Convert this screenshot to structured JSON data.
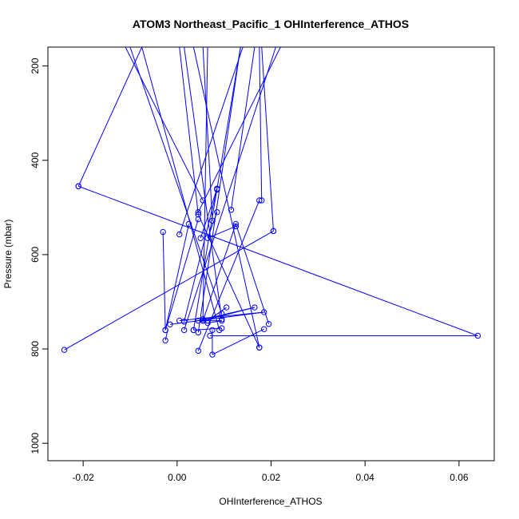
{
  "chart_data": {
    "type": "line",
    "title": "ATOM3 Northeast_Pacific_1 OHInterference_ATHOS",
    "xlabel": "OHInterference_ATHOS",
    "ylabel": "Pressure (mbar)",
    "xlim": [
      -0.0275,
      0.0675
    ],
    "ylim": [
      1037,
      160
    ],
    "y_inverted": true,
    "x_ticks": [
      -0.02,
      0.0,
      0.02,
      0.04,
      0.06
    ],
    "x_tick_labels": [
      "-0.02",
      "0.00",
      "0.02",
      "0.04",
      "0.06"
    ],
    "y_ticks": [
      200,
      400,
      600,
      800,
      1000
    ],
    "y_tick_labels": [
      "200",
      "400",
      "600",
      "800",
      "1000"
    ],
    "grid": false,
    "legend": "none",
    "series": [
      {
        "color": "#0000ff",
        "marker": "open-circle",
        "segments": [
          {
            "points": [
              [
                -0.011,
                160
              ],
              [
                0.0055,
                485
              ]
            ],
            "marker_end": true
          },
          {
            "points": [
              [
                -0.01,
                160
              ],
              [
                0.0095,
                725
              ]
            ],
            "marker_end": true
          },
          {
            "points": [
              [
                -0.0075,
                160
              ],
              [
                0.009,
                760
              ]
            ],
            "marker_end": true
          },
          {
            "points": [
              [
                -0.0075,
                160
              ],
              [
                -0.021,
                455
              ]
            ],
            "marker_end": true
          },
          {
            "points": [
              [
                -0.021,
                455
              ],
              [
                0.064,
                772
              ]
            ],
            "marker_start": true,
            "marker_end": true
          },
          {
            "points": [
              [
                0.064,
                772
              ],
              [
                0.007,
                772
              ]
            ],
            "marker_end": true
          },
          {
            "points": [
              [
                0.0005,
                160
              ],
              [
                0.0045,
                515
              ]
            ],
            "marker_end": true
          },
          {
            "points": [
              [
                0.0045,
                515
              ],
              [
                0.0175,
                797
              ]
            ],
            "marker_start": true,
            "marker_end": true
          },
          {
            "points": [
              [
                0.0015,
                160
              ],
              [
                0.0095,
                737
              ]
            ],
            "marker_end": true
          },
          {
            "points": [
              [
                0.0035,
                160
              ],
              [
                0.0175,
                797
              ]
            ],
            "marker_end": true
          },
          {
            "points": [
              [
                0.0055,
                160
              ],
              [
                0.0075,
                528
              ]
            ],
            "marker_end": true
          },
          {
            "points": [
              [
                0.014,
                160
              ],
              [
                0.0005,
                557
              ]
            ],
            "marker_end": true
          },
          {
            "points": [
              [
                0.0065,
                160
              ],
              [
                0.0055,
                737
              ]
            ],
            "marker_end": true
          },
          {
            "points": [
              [
                0.0135,
                160
              ],
              [
                0.0045,
                765
              ]
            ],
            "marker_end": true
          },
          {
            "points": [
              [
                0.0135,
                160
              ],
              [
                0.0035,
                760
              ]
            ],
            "marker_end": true
          },
          {
            "points": [
              [
                0.0165,
                160
              ],
              [
                0.0115,
                505
              ]
            ],
            "marker_end": true
          },
          {
            "points": [
              [
                0.0175,
                160
              ],
              [
                0.018,
                485
              ]
            ],
            "marker_end": true
          },
          {
            "points": [
              [
                0.018,
                160
              ],
              [
                0.0205,
                550
              ]
            ],
            "marker_end": true
          },
          {
            "points": [
              [
                0.022,
                160
              ],
              [
                0.0045,
                510
              ]
            ],
            "marker_end": true
          },
          {
            "points": [
              [
                0.021,
                160
              ],
              [
                0.0015,
                760
              ]
            ],
            "marker_end": true
          },
          {
            "points": [
              [
                0.0125,
                540
              ],
              [
                0.0065,
                565
              ]
            ],
            "marker_start": true,
            "marker_end": true
          },
          {
            "points": [
              [
                0.0065,
                565
              ],
              [
                0.0085,
                510
              ]
            ],
            "marker_end": true
          },
          {
            "points": [
              [
                0.0025,
                535
              ],
              [
                -0.0025,
                760
              ]
            ],
            "marker_start": true,
            "marker_end": true
          },
          {
            "points": [
              [
                -0.0025,
                760
              ],
              [
                -0.003,
                552
              ]
            ],
            "marker_end": true
          },
          {
            "points": [
              [
                0.005,
                565
              ],
              [
                0.0085,
                460
              ]
            ],
            "marker_start": true,
            "marker_end": true
          },
          {
            "points": [
              [
                0.0045,
                525
              ],
              [
                -0.0025,
                760
              ]
            ],
            "marker_start": true,
            "marker_end": true
          },
          {
            "points": [
              [
                -0.002,
                760
              ],
              [
                -0.0025,
                782
              ]
            ],
            "marker_end": true
          },
          {
            "points": [
              [
                0.0205,
                550
              ],
              [
                -0.024,
                802
              ]
            ],
            "marker_start": true,
            "marker_end": true
          },
          {
            "points": [
              [
                -0.0015,
                748
              ],
              [
                0.0185,
                722
              ]
            ],
            "marker_start": true,
            "marker_end": true
          },
          {
            "points": [
              [
                0.0185,
                722
              ],
              [
                0.0005,
                740
              ]
            ],
            "marker_end": true
          },
          {
            "points": [
              [
                0.0085,
                462
              ],
              [
                0.0015,
                742
              ]
            ],
            "marker_start": true,
            "marker_end": true
          },
          {
            "points": [
              [
                0.0035,
                742
              ],
              [
                0.0165,
                712
              ]
            ],
            "marker_end": true
          },
          {
            "points": [
              [
                0.0165,
                712
              ],
              [
                0.0055,
                740
              ]
            ],
            "marker_end": true
          },
          {
            "points": [
              [
                0.0055,
                740
              ],
              [
                0.0125,
                535
              ]
            ],
            "marker_start": true,
            "marker_end": true
          },
          {
            "points": [
              [
                0.0125,
                535
              ],
              [
                0.0195,
                747
              ]
            ],
            "marker_end": true
          },
          {
            "points": [
              [
                0.0045,
                740
              ],
              [
                0.0095,
                740
              ]
            ],
            "marker_start": true,
            "marker_end": true
          },
          {
            "points": [
              [
                0.0095,
                740
              ],
              [
                0.0065,
                745
              ]
            ],
            "marker_end": true
          },
          {
            "points": [
              [
                0.0175,
                485
              ],
              [
                0.0045,
                804
              ]
            ],
            "marker_start": true,
            "marker_end": true
          },
          {
            "points": [
              [
                0.0185,
                758
              ],
              [
                0.0075,
                812
              ]
            ],
            "marker_start": true,
            "marker_end": true
          },
          {
            "points": [
              [
                0.0075,
                812
              ],
              [
                0.0075,
                760
              ]
            ],
            "marker_end": true
          },
          {
            "points": [
              [
                0.0035,
                760
              ],
              [
                0.0095,
                756
              ]
            ],
            "marker_start": true,
            "marker_end": true
          },
          {
            "points": [
              [
                0.0065,
                740
              ],
              [
                0.0105,
                712
              ]
            ],
            "marker_start": true,
            "marker_end": true
          }
        ]
      }
    ]
  }
}
